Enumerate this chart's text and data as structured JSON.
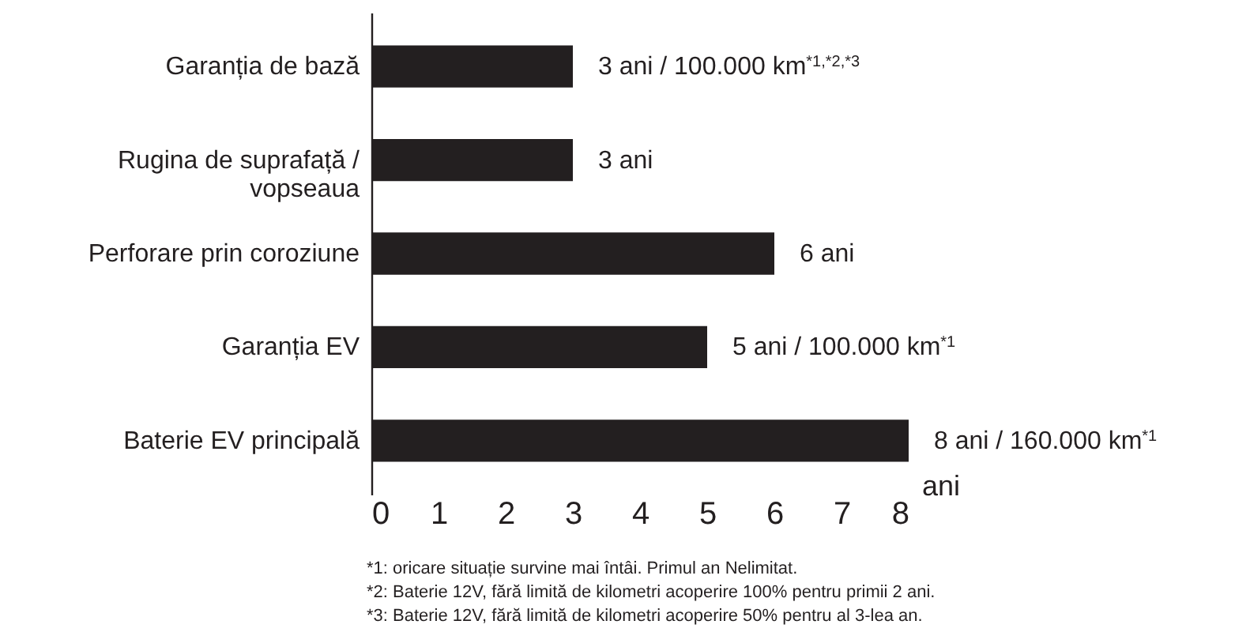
{
  "chart_data": {
    "type": "bar",
    "orientation": "horizontal",
    "categories": [
      "Garanția de bază",
      "Rugina de suprafață / vopseaua",
      "Perforare prin coroziune",
      "Garanția EV",
      "Baterie EV principală"
    ],
    "values": [
      3,
      3,
      6,
      5,
      8
    ],
    "value_labels": [
      "3 ani / 100.000 km$^{*1,*2,*3}$",
      "3 ani",
      "6 ani",
      "5 ani / 100.000 km$^{*1}$",
      "8 ani / 160.000 km$^{*1}$"
    ],
    "color": "#231f20",
    "xlabel": "ani",
    "xlim": [
      0,
      8
    ],
    "xticks": [
      0,
      1,
      2,
      3,
      4,
      5,
      6,
      7,
      8
    ],
    "grid": false,
    "annotations": [
      "*1: oricare situație survine mai întâi. Primul an Nelimitat.",
      "*2: Baterie 12V, fără limită de kilometri acoperire 100% pentru primii 2 ani.",
      "*3: Baterie 12V, fără limită de kilometri acoperire 50% pentru al 3-lea an."
    ]
  }
}
